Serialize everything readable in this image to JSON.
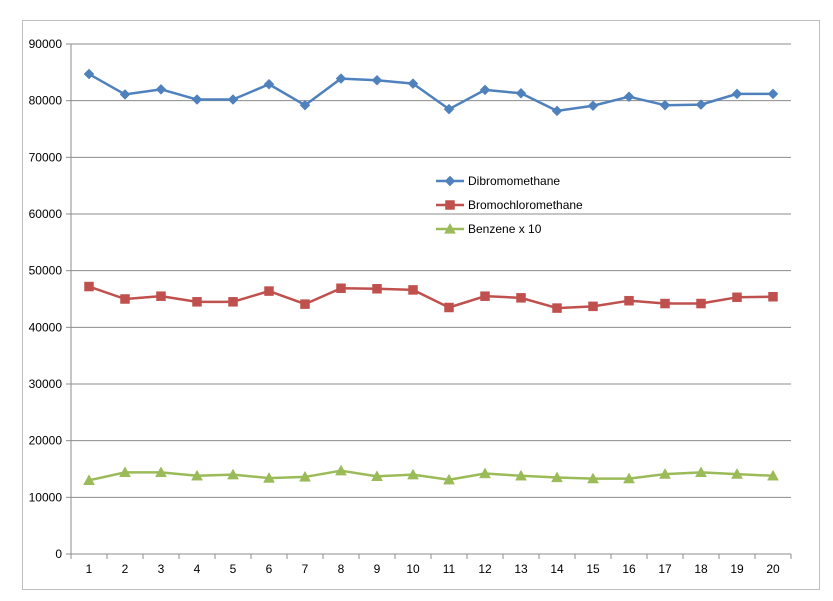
{
  "chart_data": {
    "type": "line",
    "title": "",
    "xlabel": "",
    "ylabel": "",
    "ylim": [
      0,
      90000
    ],
    "yticks": [
      0,
      10000,
      20000,
      30000,
      40000,
      50000,
      60000,
      70000,
      80000,
      90000
    ],
    "ytick_labels": [
      "0",
      "10000",
      "20000",
      "30000",
      "40000",
      "50000",
      "60000",
      "70000",
      "80000",
      "90000"
    ],
    "grid": true,
    "legend_position": "center-right",
    "categories": [
      "1",
      "2",
      "3",
      "4",
      "5",
      "6",
      "7",
      "8",
      "9",
      "10",
      "11",
      "12",
      "13",
      "14",
      "15",
      "16",
      "17",
      "18",
      "19",
      "20"
    ],
    "series": [
      {
        "name": "Dibromomethane",
        "color": "#4f81bd",
        "marker": "diamond",
        "values": [
          84700,
          81100,
          82000,
          80200,
          80200,
          82900,
          79200,
          83900,
          83600,
          83000,
          78500,
          81900,
          81300,
          78200,
          79100,
          80700,
          79200,
          79300,
          81200,
          81200
        ]
      },
      {
        "name": "Bromochloromethane",
        "color": "#c0504d",
        "marker": "square",
        "values": [
          47200,
          45000,
          45500,
          44500,
          44500,
          46400,
          44100,
          46900,
          46800,
          46600,
          43500,
          45500,
          45200,
          43400,
          43700,
          44700,
          44200,
          44200,
          45300,
          45400
        ]
      },
      {
        "name": "Benzene x 10",
        "color": "#9bbb59",
        "marker": "triangle",
        "values": [
          13000,
          14400,
          14400,
          13800,
          14000,
          13400,
          13600,
          14700,
          13700,
          14000,
          13100,
          14200,
          13800,
          13500,
          13300,
          13300,
          14100,
          14400,
          14100,
          13800
        ]
      }
    ]
  }
}
